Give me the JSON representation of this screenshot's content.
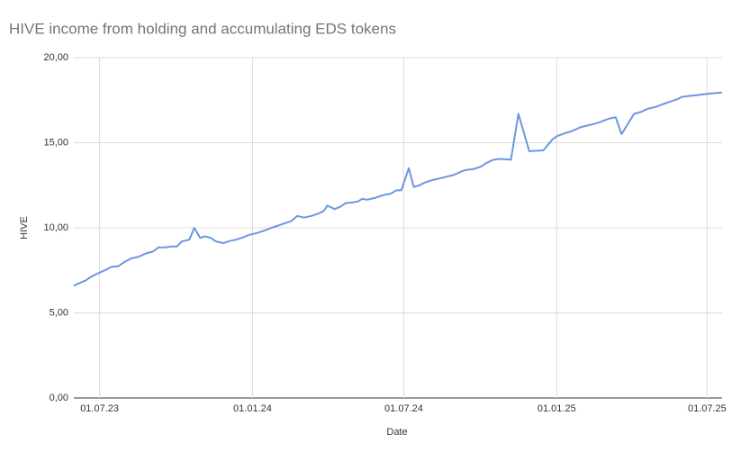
{
  "chart_data": {
    "type": "line",
    "title": "HIVE income from holding and accumulating EDS tokens",
    "x_label": "Date",
    "y_label": "HIVE",
    "x": [
      "2023-05-31",
      "2023-06-09",
      "2023-06-14",
      "2023-06-20",
      "2023-06-28",
      "2023-07-07",
      "2023-07-15",
      "2023-07-24",
      "2023-07-31",
      "2023-08-08",
      "2023-08-17",
      "2023-08-26",
      "2023-09-03",
      "2023-09-10",
      "2023-09-18",
      "2023-09-25",
      "2023-10-02",
      "2023-10-08",
      "2023-10-17",
      "2023-10-23",
      "2023-10-30",
      "2023-11-05",
      "2023-11-12",
      "2023-11-18",
      "2023-11-27",
      "2023-12-03",
      "2023-12-12",
      "2023-12-21",
      "2023-12-29",
      "2024-01-07",
      "2024-01-16",
      "2024-01-24",
      "2024-02-02",
      "2024-02-11",
      "2024-02-17",
      "2024-02-24",
      "2024-03-03",
      "2024-03-12",
      "2024-03-21",
      "2024-03-27",
      "2024-03-31",
      "2024-04-09",
      "2024-04-16",
      "2024-04-22",
      "2024-05-01",
      "2024-05-07",
      "2024-05-12",
      "2024-05-18",
      "2024-05-27",
      "2024-06-02",
      "2024-06-09",
      "2024-06-15",
      "2024-06-22",
      "2024-06-28",
      "2024-07-07",
      "2024-07-13",
      "2024-07-20",
      "2024-07-26",
      "2024-08-04",
      "2024-08-13",
      "2024-08-21",
      "2024-08-30",
      "2024-09-08",
      "2024-09-14",
      "2024-09-23",
      "2024-10-02",
      "2024-10-08",
      "2024-10-17",
      "2024-10-25",
      "2024-11-07",
      "2024-11-16",
      "2024-11-29",
      "2024-12-16",
      "2024-12-27",
      "2025-01-02",
      "2025-01-11",
      "2025-01-20",
      "2025-01-29",
      "2025-02-06",
      "2025-02-15",
      "2025-02-24",
      "2025-03-04",
      "2025-03-13",
      "2025-03-20",
      "2025-04-04",
      "2025-04-12",
      "2025-04-21",
      "2025-04-30",
      "2025-05-08",
      "2025-05-17",
      "2025-05-26",
      "2025-06-01",
      "2025-06-10",
      "2025-06-19",
      "2025-06-27",
      "2025-07-06",
      "2025-07-19"
    ],
    "series": [
      {
        "name": "HIVE",
        "color": "#6d96e3",
        "values": [
          6.6,
          6.8,
          6.9,
          7.1,
          7.3,
          7.5,
          7.7,
          7.75,
          8.0,
          8.2,
          8.3,
          8.5,
          8.6,
          8.85,
          8.85,
          8.9,
          8.9,
          9.2,
          9.3,
          10.0,
          9.4,
          9.5,
          9.4,
          9.2,
          9.1,
          9.2,
          9.3,
          9.45,
          9.6,
          9.7,
          9.85,
          10.0,
          10.15,
          10.3,
          10.4,
          10.7,
          10.6,
          10.7,
          10.85,
          11.0,
          11.3,
          11.1,
          11.25,
          11.45,
          11.5,
          11.55,
          11.7,
          11.65,
          11.75,
          11.85,
          11.95,
          12.0,
          12.2,
          12.2,
          13.5,
          12.4,
          12.5,
          12.65,
          12.8,
          12.9,
          13.0,
          13.1,
          13.3,
          13.4,
          13.45,
          13.6,
          13.8,
          14.0,
          14.05,
          14.0,
          16.7,
          14.5,
          14.55,
          15.2,
          15.4,
          15.55,
          15.7,
          15.9,
          16.0,
          16.1,
          16.25,
          16.4,
          16.5,
          15.5,
          16.7,
          16.8,
          17.0,
          17.1,
          17.25,
          17.4,
          17.55,
          17.7,
          17.75,
          17.8,
          17.85,
          17.9,
          17.95
        ]
      }
    ],
    "xlim": [
      "2023-05-31",
      "2025-07-19"
    ],
    "xticks": [
      {
        "value": "2023-07-01",
        "label": "01.07.23"
      },
      {
        "value": "2024-01-01",
        "label": "01.01.24"
      },
      {
        "value": "2024-07-01",
        "label": "01.07.24"
      },
      {
        "value": "2025-01-01",
        "label": "01.01.25"
      },
      {
        "value": "2025-07-01",
        "label": "01.07.25"
      }
    ],
    "ylim": [
      0,
      20
    ],
    "yticks": [
      {
        "value": 0,
        "label": "0,00"
      },
      {
        "value": 5,
        "label": "5,00"
      },
      {
        "value": 10,
        "label": "10,00"
      },
      {
        "value": 15,
        "label": "15,00"
      },
      {
        "value": 20,
        "label": "20,00"
      }
    ],
    "grid": true
  }
}
